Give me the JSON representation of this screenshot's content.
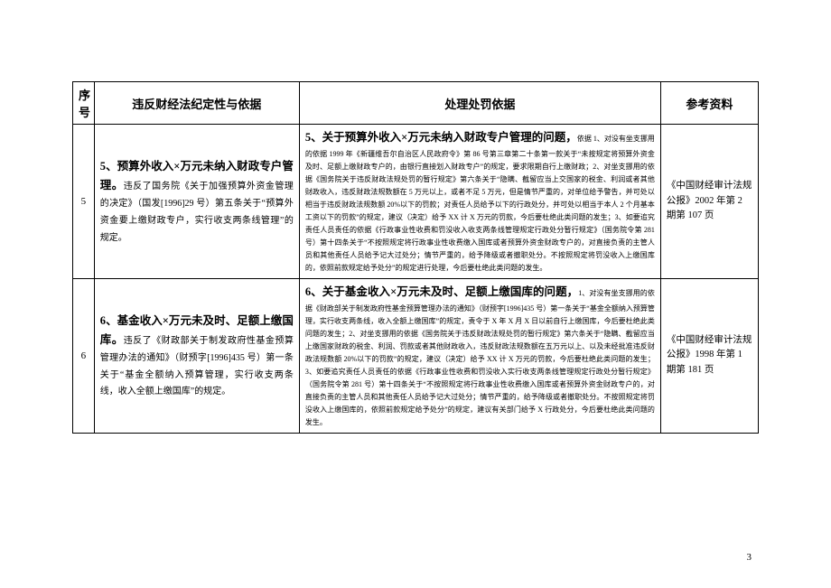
{
  "header": {
    "seq": "序号",
    "nature": "违反财经法纪定性与依据",
    "basis": "处理处罚依据",
    "ref": "参考资料"
  },
  "rows": [
    {
      "seq": "5",
      "nature_title": "5、预算外收入×万元未纳入财政专户管理。",
      "nature_body": "违反了国务院《关于加强预算外资金管理的决定》（国发[1996]29 号）第五条关于“预算外资金要上缴财政专户，实行收支两条线管理”的规定。",
      "basis_title": "5、关于预算外收入×万元未纳入财政专户管理的问题，",
      "basis_body": "依据 1、对没有坐支挪用的依据 1999 年《新疆维吾尔自治区人民政府令》第 86 号第三章第二十条第一款关于“未按规定将预算外资金及时、足额上缴财政专户的，由银行直接划入财政专户”的规定，要求限期自行上缴财政；2、对坐支挪用的依据《国务院关于违反财政法规处罚的暂行规定》第六条关于“隐瞒、截留应当上交国家的税金、利润或者其他财政收入，违反财政法规数额在 5 万元以上，或者不足 5 万元，但是情节严重的，对单位给予警告，并可处以相当于违反财政法规数额 20%以下的罚款；对责任人员给予以下的行政处分，并可处以相当于本人 2 个月基本工资以下的罚款”的规定，建议（决定）给予 XX 计 X 万元的罚款，今后要杜绝此类问题的发生；3、如要追究责任人员责任的依据《行政事业性收费和罚没收入收支两条线管理规定行政处分暂行规定》（国务院令第 281 号）第十四条关于“不按照规定将行政事业性收费缴入国库或者预算外资金财政专户的，对直接负责的主管人员和其他责任人员给予记大过处分；情节严重的，给予降级或者撤职处分。不按照规定将罚没收入上缴国库的，依照前款规定给予处分”的规定进行处理，今后要杜绝此类问题的发生。",
      "ref": "《中国财经审计法规公报》2002 年第 2 期第 107 页"
    },
    {
      "seq": "6",
      "nature_title": "6、基金收入×万元未及时、足额上缴国库。",
      "nature_body": "违反了《财政部关于制发政府性基金预算管理办法的通知》（财预字[1996]435 号）第一条关于“基金全额纳入预算管理，实行收支两条线，收入全额上缴国库”的规定。",
      "basis_title": "6、关于基金收入×万元未及时、足额上缴国库的问题，",
      "basis_body": "1、对没有坐支挪用的依据《财政部关于制发政府性基金预算管理办法的通知》（财预字[1996]435 号）第一条关于“基金全额纳入预算管理，实行收支两条线，收入全额上缴国库”的规定，责令于 X 年 X 月 X 日以前自行上缴国库，今后要杜绝此类问题的发生；2、对坐支挪用的依据《国务院关于违反财政法规处罚的暂行规定》第六条关于“隐瞒、截留应当上缴国家财政的税金、利润、罚款或者其他财政收入，违反财政法规数额在五万元以上、以及未经批准违反财政法规数额 20%以下的罚款”的规定，建议（决定）给予 XX 计 X 万元的罚款，今后要杜绝此类问题的发生；3、如要追究责任人员责任的依据《行政事业性收费和罚没收入实行收支两条线管理规定行政处分暂行规定》（国务院令第 281 号）第十四条关于“不按照规定将行政事业性收费缴入国库或者预算外资金财政专户的，对直接负责的主管人员和其他责任人员给予记大过处分；情节严重的，给予降级或者撤职处分。不按照规定将罚没收入上缴国库的，依照前款规定给予处分”的规定，建议有关部门给予 X 行政处分，今后要杜绝此类问题的发生。",
      "ref": "《中国财经审计法规公报》1998 年第 1 期第 181 页"
    }
  ],
  "page_number": "3"
}
